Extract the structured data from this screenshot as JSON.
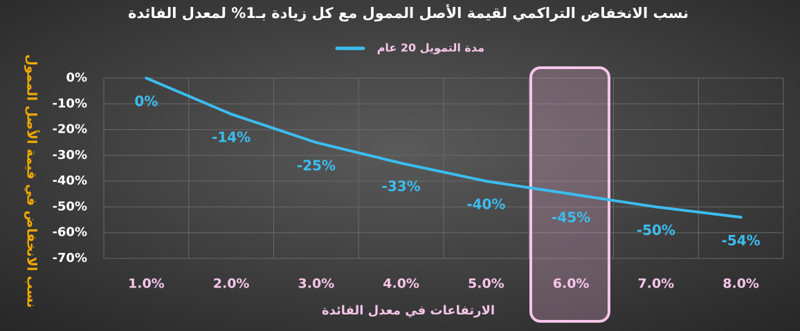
{
  "chart_data": {
    "type": "line",
    "title": "نسب الانخفاض التراكمي لقيمة الأصل الممول مع كل زيادة بـ1% لمعدل الفائدة",
    "x_label": "الارتفاعات في معدل الفائدة",
    "y_label": "نسب الانخفاض في قيمة الأصل الممول",
    "categories": [
      "1.0%",
      "2.0%",
      "3.0%",
      "4.0%",
      "5.0%",
      "6.0%",
      "7.0%",
      "8.0%"
    ],
    "series": [
      {
        "name": "مدة التمويل 20 عام",
        "color": "#3cbdf0",
        "values": [
          0,
          -14,
          -25,
          -33,
          -40,
          -45,
          -50,
          -54
        ],
        "value_labels": [
          "0%",
          "-14%",
          "-25%",
          "-33%",
          "-40%",
          "-45%",
          "-50%",
          "-54%"
        ]
      }
    ],
    "ylim": [
      -70,
      0
    ],
    "yticks": [
      {
        "value": 0,
        "label": "0%"
      },
      {
        "value": -10,
        "label": "-10%"
      },
      {
        "value": -20,
        "label": "-20%"
      },
      {
        "value": -30,
        "label": "-30%"
      },
      {
        "value": -40,
        "label": "-40%"
      },
      {
        "value": -50,
        "label": "-50%"
      },
      {
        "value": -60,
        "label": "-60%"
      },
      {
        "value": -70,
        "label": "-70%"
      }
    ],
    "grid": true,
    "legend": "top"
  }
}
